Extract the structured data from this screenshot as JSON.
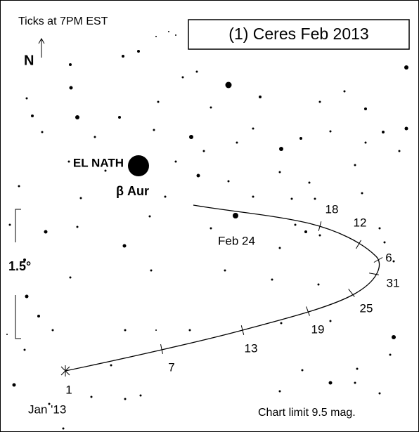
{
  "header": {
    "note": "Ticks at 7PM EST",
    "title": "(1) Ceres  Feb  2013"
  },
  "compass": {
    "north": "N"
  },
  "stars": {
    "bright_name": "EL NATH",
    "bright_designation": "β Aur"
  },
  "scale": {
    "label": "1.5°"
  },
  "path": {
    "start": "Jan '13",
    "end": "Feb 24",
    "ticks": [
      "1",
      "7",
      "13",
      "19",
      "25",
      "31",
      "6",
      "12",
      "18"
    ]
  },
  "footer": {
    "limit": "Chart limit 9.5 mag."
  }
}
